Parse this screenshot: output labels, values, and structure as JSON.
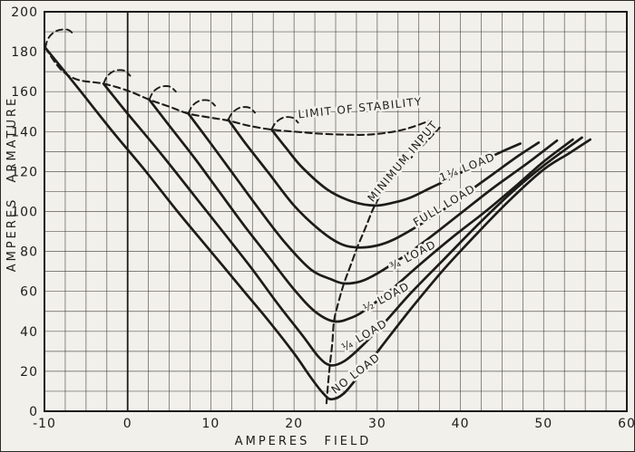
{
  "figure": {
    "paper_color": "#f2f0ea",
    "ink_color": "#1d1c1a",
    "grid_color": "#45423c"
  },
  "chart_data": {
    "type": "line",
    "title": "",
    "xlabel": "AMPERES FIELD",
    "ylabel": "AMPERES ARMATURE",
    "xlim": [
      -10,
      60
    ],
    "ylim": [
      0,
      200
    ],
    "x_grid_step": 2.5,
    "y_grid_step": 10,
    "x_ticks": [
      -10,
      0,
      10,
      20,
      30,
      40,
      50,
      60
    ],
    "y_ticks": [
      0,
      20,
      40,
      60,
      80,
      100,
      120,
      140,
      160,
      180,
      200
    ],
    "grid": true,
    "legend_position": "none",
    "zero_field_axis_line": true,
    "series": [
      {
        "id": "no-load",
        "name": "NO LOAD",
        "style": "solid",
        "points": [
          [
            -9.9,
            182
          ],
          [
            -6,
            162
          ],
          [
            -2,
            141
          ],
          [
            2,
            121
          ],
          [
            6,
            100
          ],
          [
            10,
            80
          ],
          [
            14,
            60
          ],
          [
            17,
            45
          ],
          [
            20,
            29
          ],
          [
            22,
            17
          ],
          [
            23.5,
            9
          ],
          [
            24.5,
            6
          ],
          [
            26,
            9
          ],
          [
            28,
            19
          ],
          [
            31,
            35
          ],
          [
            34,
            51
          ],
          [
            38,
            71
          ],
          [
            42,
            89
          ],
          [
            46,
            106
          ],
          [
            50,
            121
          ],
          [
            53,
            129
          ],
          [
            55.6,
            136
          ]
        ]
      },
      {
        "id": "quarter-load",
        "name": "¼ LOAD",
        "style": "solid",
        "points": [
          [
            -2.9,
            164
          ],
          [
            0,
            149
          ],
          [
            4,
            129
          ],
          [
            8,
            108
          ],
          [
            12,
            87
          ],
          [
            15,
            71
          ],
          [
            18,
            54
          ],
          [
            21,
            38
          ],
          [
            23,
            27
          ],
          [
            24.4,
            23
          ],
          [
            26,
            25
          ],
          [
            28,
            32
          ],
          [
            31,
            45
          ],
          [
            34,
            59
          ],
          [
            38,
            76
          ],
          [
            42,
            93
          ],
          [
            46,
            109
          ],
          [
            50,
            123
          ],
          [
            54.6,
            137
          ]
        ]
      },
      {
        "id": "half-load",
        "name": "½ LOAD",
        "style": "solid",
        "points": [
          [
            2.6,
            156
          ],
          [
            5,
            143
          ],
          [
            8,
            127
          ],
          [
            11,
            110
          ],
          [
            14,
            93
          ],
          [
            17,
            77
          ],
          [
            20,
            61
          ],
          [
            22.5,
            50
          ],
          [
            24.8,
            45
          ],
          [
            27,
            47
          ],
          [
            29,
            52
          ],
          [
            32,
            62
          ],
          [
            35,
            73
          ],
          [
            39,
            87
          ],
          [
            43,
            100
          ],
          [
            47,
            114
          ],
          [
            50,
            125
          ],
          [
            53.5,
            136
          ]
        ]
      },
      {
        "id": "three-quarter-load",
        "name": "¾ LOAD",
        "style": "solid",
        "points": [
          [
            7.3,
            149
          ],
          [
            10,
            134
          ],
          [
            13,
            117
          ],
          [
            16,
            100
          ],
          [
            19,
            84
          ],
          [
            22,
            71
          ],
          [
            24.5,
            66
          ],
          [
            26,
            64
          ],
          [
            28,
            65
          ],
          [
            30,
            69
          ],
          [
            33,
            77
          ],
          [
            36,
            86
          ],
          [
            40,
            99
          ],
          [
            44,
            112
          ],
          [
            48,
            124
          ],
          [
            51.6,
            135.5
          ]
        ]
      },
      {
        "id": "full-load",
        "name": "FULL LOAD",
        "style": "solid",
        "points": [
          [
            12.1,
            146
          ],
          [
            14,
            135
          ],
          [
            17,
            119
          ],
          [
            20,
            103
          ],
          [
            23,
            91
          ],
          [
            25.5,
            84
          ],
          [
            27.6,
            82
          ],
          [
            30,
            83
          ],
          [
            32,
            86
          ],
          [
            35,
            93
          ],
          [
            38,
            101
          ],
          [
            41,
            110
          ],
          [
            44,
            119
          ],
          [
            47,
            128
          ],
          [
            49.4,
            134.5
          ]
        ]
      },
      {
        "id": "one-and-quarter-load",
        "name": "1¼ LOAD",
        "style": "solid",
        "points": [
          [
            17.3,
            141
          ],
          [
            19,
            132
          ],
          [
            21,
            122
          ],
          [
            24,
            111
          ],
          [
            27,
            105
          ],
          [
            29.7,
            103
          ],
          [
            32,
            104.5
          ],
          [
            34,
            107
          ],
          [
            36.5,
            112
          ],
          [
            39,
            117
          ],
          [
            42,
            124
          ],
          [
            45,
            130
          ],
          [
            47.2,
            134
          ]
        ]
      },
      {
        "id": "limit-of-stability",
        "name": "LIMIT OF STABILITY",
        "style": "dashed",
        "points": [
          [
            -9.9,
            182
          ],
          [
            -8,
            171
          ],
          [
            -6,
            166
          ],
          [
            -2.9,
            164
          ],
          [
            0,
            160.5
          ],
          [
            2.6,
            156
          ],
          [
            5,
            152.5
          ],
          [
            7.3,
            149
          ],
          [
            10,
            147
          ],
          [
            12.1,
            145.5
          ],
          [
            14.5,
            143
          ],
          [
            17.3,
            141
          ],
          [
            20,
            140
          ],
          [
            23,
            139
          ],
          [
            26,
            138.5
          ],
          [
            29,
            138.5
          ],
          [
            32,
            140
          ],
          [
            34,
            142
          ],
          [
            36.3,
            145.5
          ]
        ]
      },
      {
        "id": "minimum-input",
        "name": "MINIMUM INPUT",
        "style": "dashed",
        "points": [
          [
            23.9,
            4
          ],
          [
            24.1,
            14
          ],
          [
            24.3,
            23
          ],
          [
            24.6,
            34
          ],
          [
            24.8,
            45
          ],
          [
            25.3,
            54
          ],
          [
            26,
            64
          ],
          [
            26.8,
            73
          ],
          [
            27.6,
            82
          ],
          [
            28.6,
            92
          ],
          [
            29.7,
            103
          ],
          [
            31,
            112
          ],
          [
            33,
            122
          ],
          [
            35,
            131
          ],
          [
            37.5,
            142
          ]
        ]
      },
      {
        "id": "hook-no-load",
        "name": "instability hook (no load)",
        "style": "dashed",
        "points": [
          [
            -9.9,
            182
          ],
          [
            -9.5,
            187
          ],
          [
            -8.5,
            190.5
          ],
          [
            -7.2,
            191
          ],
          [
            -6.4,
            188.3
          ]
        ]
      },
      {
        "id": "hook-quarter-load",
        "name": "instability hook (1/4 load)",
        "style": "dashed",
        "points": [
          [
            -2.9,
            164
          ],
          [
            -2.4,
            168
          ],
          [
            -1.5,
            170.5
          ],
          [
            -0.4,
            170.5
          ],
          [
            0.3,
            168
          ]
        ]
      },
      {
        "id": "hook-half-load",
        "name": "instability hook (1/2 load)",
        "style": "dashed",
        "points": [
          [
            2.6,
            156
          ],
          [
            3.1,
            160
          ],
          [
            4,
            162.5
          ],
          [
            5.1,
            162.5
          ],
          [
            5.8,
            160
          ]
        ]
      },
      {
        "id": "hook-three-quarter-load",
        "name": "instability hook (3/4 load)",
        "style": "dashed",
        "points": [
          [
            7.3,
            149
          ],
          [
            7.8,
            153
          ],
          [
            8.7,
            155.5
          ],
          [
            9.8,
            155.5
          ],
          [
            10.5,
            153
          ]
        ]
      },
      {
        "id": "hook-full-load",
        "name": "instability hook (full load)",
        "style": "dashed",
        "points": [
          [
            12.1,
            146
          ],
          [
            12.6,
            149.5
          ],
          [
            13.5,
            152
          ],
          [
            14.6,
            152
          ],
          [
            15.3,
            149.5
          ]
        ]
      },
      {
        "id": "hook-one-and-quarter-load",
        "name": "instability hook (1 1/4 load)",
        "style": "dashed",
        "points": [
          [
            17.3,
            141
          ],
          [
            17.8,
            144.5
          ],
          [
            18.7,
            147
          ],
          [
            19.8,
            147
          ],
          [
            20.5,
            144.5
          ]
        ]
      }
    ],
    "annotations": [
      {
        "id": "label-limit-of-stability",
        "text": "LIMIT OF STABILITY",
        "x": 28,
        "y": 150,
        "rotation": -6
      },
      {
        "id": "label-minimum-input",
        "text": "MINIMUM  INPUT",
        "x": 33.4,
        "y": 124,
        "rotation": -50
      },
      {
        "id": "label-one-and-quarter",
        "text": "1¼ LOAD",
        "x": 41,
        "y": 120.5,
        "rotation": -22
      },
      {
        "id": "label-full-load",
        "text": "FULL LOAD",
        "x": 38.3,
        "y": 101.5,
        "rotation": -31
      },
      {
        "id": "label-three-quarter",
        "text": "¾ LOAD",
        "x": 34.5,
        "y": 76.5,
        "rotation": -28
      },
      {
        "id": "label-half-load",
        "text": "½ LOAD",
        "x": 31.3,
        "y": 55.5,
        "rotation": -28
      },
      {
        "id": "label-quarter-load",
        "text": "¼ LOAD",
        "x": 28.7,
        "y": 36.5,
        "rotation": -31
      },
      {
        "id": "label-no-load",
        "text": "NO LOAD",
        "x": 27.7,
        "y": 17.5,
        "rotation": -38
      }
    ]
  }
}
